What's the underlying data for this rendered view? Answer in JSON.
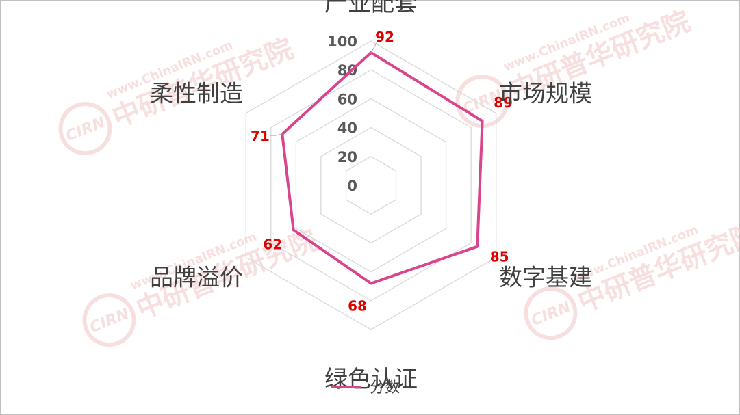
{
  "chart_data": {
    "type": "radar",
    "categories": [
      "产业配套",
      "市场规模",
      "数字基建",
      "绿色认证",
      "品牌溢价",
      "柔性制造"
    ],
    "series": [
      {
        "name": "分数",
        "values": [
          92,
          89,
          85,
          68,
          62,
          71
        ]
      }
    ],
    "r_ticks": [
      0,
      20,
      40,
      60,
      80,
      100
    ],
    "rlim": [
      0,
      100
    ],
    "grid": true,
    "data_labels": true,
    "legend_position": "bottom",
    "colors": {
      "series": "#d9448c",
      "grid": "#d9d9d9",
      "data_label": "#e00000",
      "watermark": "#f2c6c6"
    }
  },
  "watermark": {
    "badge": "CIRN",
    "cn": "中研普华研究院",
    "url": "www.ChinaIRN.com"
  }
}
